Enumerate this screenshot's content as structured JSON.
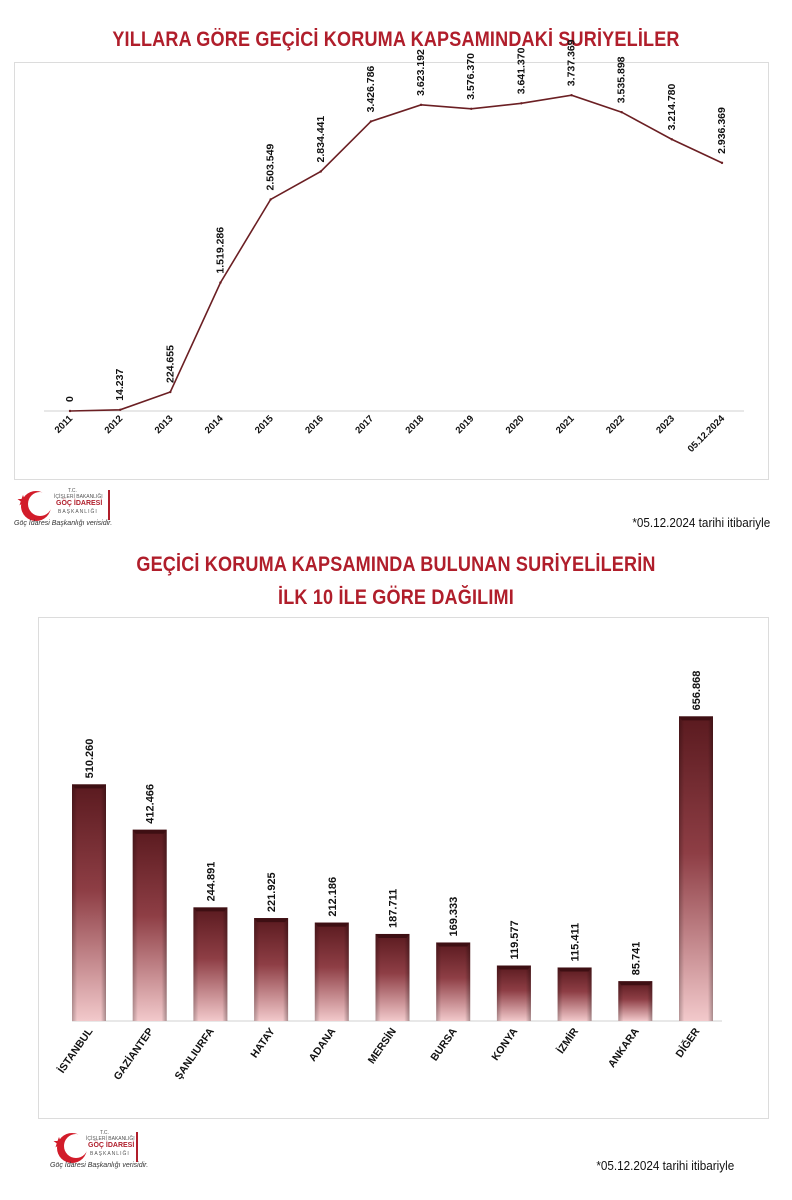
{
  "chart1": {
    "title": "YILLARA GÖRE GEÇİCİ KORUMA KAPSAMINDAKİ SURİYELİLER",
    "note": "*05.12.2024 tarihi itibariyle"
  },
  "chart2": {
    "title_line1": "GEÇİCİ KORUMA KAPSAMINDA BULUNAN SURİYELİLERİN",
    "title_line2": "İLK 10 İLE GÖRE DAĞILIMI",
    "note": "*05.12.2024 tarihi itibariyle"
  },
  "logo": {
    "line1": "T.C.",
    "line2": "İÇİŞLERİ BAKANLIĞI",
    "line3": "GÖÇ İDARESİ",
    "line4": "BAŞKANLIĞI",
    "caption": "Göç İdaresi Başkanlığı verisidir.",
    "icon": "crescent-star-icon"
  },
  "colors": {
    "accent": "#b01e2b",
    "line": "#6b1f23",
    "bar_dark": "#5a1a1f",
    "bar_light": "#f2c9cb"
  },
  "chart_data": [
    {
      "type": "line",
      "title": "YILLARA GÖRE GEÇİCİ KORUMA KAPSAMINDAKİ SURİYELİLER",
      "x": [
        "2011",
        "2012",
        "2013",
        "2014",
        "2015",
        "2016",
        "2017",
        "2018",
        "2019",
        "2020",
        "2021",
        "2022",
        "2023",
        "05.12.2024"
      ],
      "values": [
        0,
        14237,
        224655,
        1519286,
        2503549,
        2834441,
        3426786,
        3623192,
        3576370,
        3641370,
        3737369,
        3535898,
        3214780,
        2936369
      ],
      "labels": [
        "0",
        "14.237",
        "224.655",
        "1.519.286",
        "2.503.549",
        "2.834.441",
        "3.426.786",
        "3.623.192",
        "3.576.370",
        "3.641.370",
        "3.737.369",
        "3.535.898",
        "3.214.780",
        "2.936.369"
      ],
      "ylim": [
        0,
        4000000
      ],
      "grid": false
    },
    {
      "type": "bar",
      "title": "GEÇİCİ KORUMA KAPSAMINDA BULUNAN SURİYELİLERİN İLK 10 İLE GÖRE DAĞILIMI",
      "categories": [
        "İSTANBUL",
        "GAZİANTEP",
        "ŞANLIURFA",
        "HATAY",
        "ADANA",
        "MERSİN",
        "BURSA",
        "KONYA",
        "İZMİR",
        "ANKARA",
        "DİĞER"
      ],
      "values": [
        510260,
        412466,
        244891,
        221925,
        212186,
        187711,
        169333,
        119577,
        115411,
        85741,
        656868
      ],
      "labels": [
        "510.260",
        "412.466",
        "244.891",
        "221.925",
        "212.186",
        "187.711",
        "169.333",
        "119.577",
        "115.411",
        "85.741",
        "656.868"
      ],
      "ylim": [
        0,
        800000
      ],
      "grid": false
    }
  ]
}
